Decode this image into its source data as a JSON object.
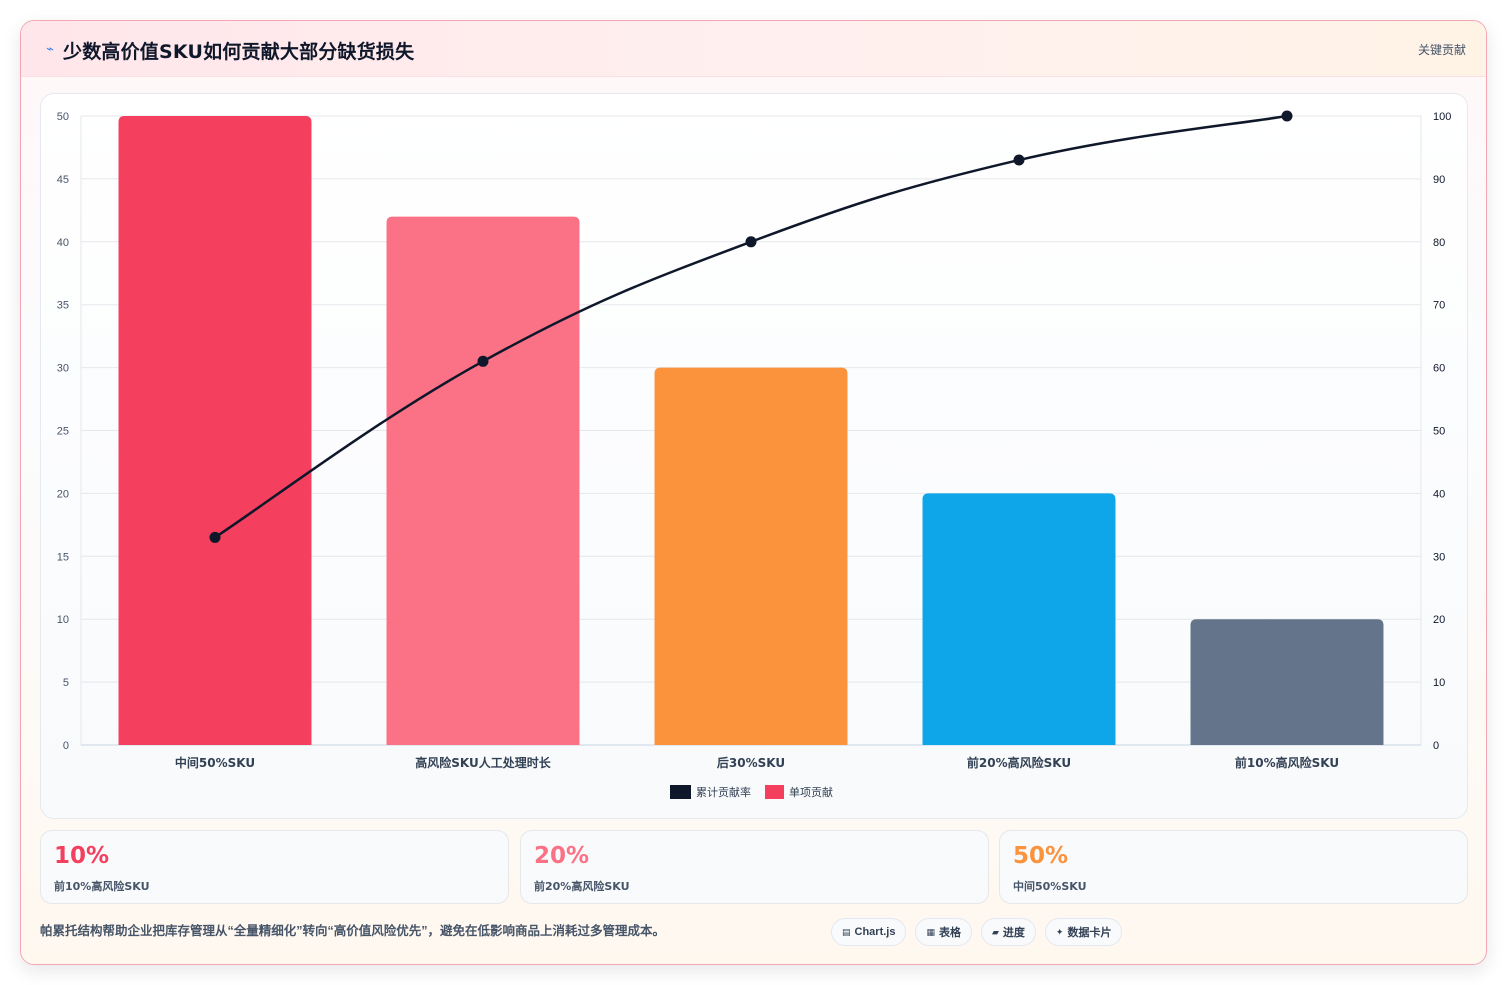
{
  "header": {
    "title": "少数高价值SKU如何贡献大部分缺货损失",
    "tag": "关键贡献"
  },
  "colors": {
    "bar_colors": [
      "#f43f5e",
      "#fb7185",
      "#fb923c",
      "#0ea5e9",
      "#64748b"
    ],
    "line": "#0f172a"
  },
  "chart_data": {
    "type": "bar",
    "categories": [
      "中间50%SKU",
      "高风险SKU人工处理时长",
      "后30%SKU",
      "前20%高风险SKU",
      "前10%高风险SKU"
    ],
    "series": [
      {
        "name": "单项贡献",
        "type": "bar",
        "axis": "left",
        "values": [
          50,
          42,
          30,
          20,
          10
        ]
      },
      {
        "name": "累计贡献率",
        "type": "line",
        "axis": "right",
        "values": [
          33,
          61,
          80,
          93,
          100
        ]
      }
    ],
    "y_left": {
      "min": 0,
      "max": 50,
      "ticks": [
        0,
        5,
        10,
        15,
        20,
        25,
        30,
        35,
        40,
        45,
        50
      ]
    },
    "y_right": {
      "min": 0,
      "max": 100,
      "ticks": [
        0,
        10,
        20,
        30,
        40,
        50,
        60,
        70,
        80,
        90,
        100
      ]
    },
    "grid": true,
    "legend_position": "bottom-center",
    "legend": [
      "累计贡献率",
      "单项贡献"
    ]
  },
  "stats": [
    {
      "value": "10%",
      "label": "前10%高风险SKU",
      "color": "#f43f5e"
    },
    {
      "value": "20%",
      "label": "前20%高风险SKU",
      "color": "#fb7185"
    },
    {
      "value": "50%",
      "label": "中间50%SKU",
      "color": "#fb923c"
    }
  ],
  "footer": {
    "text": "帕累托结构帮助企业把库存管理从“全量精细化”转向“高价值风险优先”，避免在低影响商品上消耗过多管理成本。",
    "chips": [
      {
        "icon": "chart-icon",
        "label": "Chart.js"
      },
      {
        "icon": "table-icon",
        "label": "表格"
      },
      {
        "icon": "progress-icon",
        "label": "进度"
      },
      {
        "icon": "sparkle-icon",
        "label": "数据卡片"
      }
    ]
  }
}
